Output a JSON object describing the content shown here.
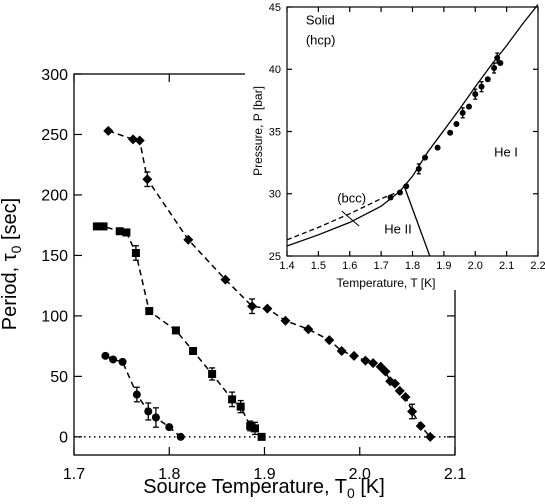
{
  "chart_data": [
    {
      "type": "scatter",
      "xlabel_main": "Source Temperature, T",
      "xlabel_sub": "0",
      "xlabel_unit": " [K]",
      "ylabel_main": "Period, τ",
      "ylabel_sub": "0",
      "ylabel_unit": " [sec]",
      "xlim": [
        1.7,
        2.1
      ],
      "ylim": [
        -15,
        300
      ],
      "xticks": [
        1.7,
        1.8,
        1.9,
        2.0,
        2.1
      ],
      "xtick_labels": [
        "1.7",
        "1.8",
        "1.9",
        "2.0",
        "2.1"
      ],
      "yticks": [
        0,
        50,
        100,
        150,
        200,
        250,
        300
      ],
      "ytick_labels": [
        "0",
        "50",
        "100",
        "150",
        "200",
        "250",
        "300"
      ],
      "reference_line": {
        "y": 0,
        "style": "dotted"
      },
      "series": [
        {
          "marker": "diamond",
          "x": [
            1.736,
            1.762,
            1.769,
            1.777,
            1.82,
            1.859,
            1.887,
            1.903,
            1.922,
            1.946,
            1.968,
            1.981,
            1.994,
            2.006,
            2.014,
            2.022,
            2.027,
            2.032,
            2.037,
            2.042,
            2.048,
            2.055,
            2.064,
            2.074
          ],
          "y": [
            253,
            246,
            245,
            213,
            163,
            130,
            108,
            106,
            96,
            89,
            80,
            71,
            67,
            63,
            61,
            58,
            54,
            46,
            44,
            38,
            33,
            21,
            9,
            0
          ],
          "yerr": [
            0,
            0,
            0,
            6,
            0,
            0,
            6,
            0,
            0,
            0,
            0,
            0,
            0,
            0,
            0,
            0,
            0,
            0,
            0,
            0,
            0,
            6,
            0,
            0
          ]
        },
        {
          "marker": "square",
          "x": [
            1.724,
            1.731,
            1.748,
            1.755,
            1.765,
            1.779,
            1.807,
            1.825,
            1.845,
            1.866,
            1.875,
            1.885,
            1.89,
            1.897
          ],
          "y": [
            174,
            174,
            170,
            169,
            152,
            104,
            88,
            71,
            52,
            31,
            25,
            9,
            7,
            0
          ],
          "yerr": [
            0,
            0,
            0,
            0,
            6,
            0,
            0,
            0,
            5,
            6,
            5,
            4,
            5,
            0
          ]
        },
        {
          "marker": "circle",
          "x": [
            1.733,
            1.741,
            1.751,
            1.766,
            1.778,
            1.786,
            1.8,
            1.812
          ],
          "y": [
            67,
            64,
            62,
            35,
            21,
            16,
            8,
            0
          ],
          "yerr": [
            0,
            0,
            0,
            6,
            7,
            8,
            0,
            0
          ]
        }
      ]
    },
    {
      "type": "line",
      "xlabel": "Temperature, T [K]",
      "ylabel": "Pressure, P [bar]",
      "xlim": [
        1.4,
        2.2
      ],
      "ylim": [
        25,
        45
      ],
      "xticks": [
        1.4,
        1.5,
        1.6,
        1.7,
        1.8,
        1.9,
        2.0,
        2.1,
        2.2
      ],
      "xtick_labels": [
        "1.4",
        "1.5",
        "1.6",
        "1.7",
        "1.8",
        "1.9",
        "2.0",
        "2.1",
        "2.2"
      ],
      "yticks": [
        25,
        30,
        35,
        40,
        45
      ],
      "ytick_labels": [
        "25",
        "30",
        "35",
        "40",
        "45"
      ],
      "curves": [
        {
          "style": "solid",
          "x": [
            1.4,
            1.5,
            1.6,
            1.7,
            1.76,
            1.8,
            1.85,
            1.9,
            1.95,
            2.0,
            2.05,
            2.1,
            2.15,
            2.2
          ],
          "y": [
            25.8,
            26.7,
            27.7,
            29.0,
            30.2,
            31.4,
            33.4,
            35.1,
            36.8,
            38.6,
            40.3,
            41.9,
            43.6,
            45.2
          ]
        },
        {
          "style": "dashed",
          "x": [
            1.4,
            1.5,
            1.6,
            1.7,
            1.76
          ],
          "y": [
            26.3,
            27.3,
            28.4,
            29.6,
            30.2
          ]
        },
        {
          "style": "solid",
          "x": [
            1.775,
            1.855
          ],
          "y": [
            30.5,
            25.0
          ]
        }
      ],
      "points": {
        "marker": "circle",
        "x": [
          1.73,
          1.76,
          1.78,
          1.82,
          1.84,
          1.88,
          1.92,
          1.94,
          1.96,
          1.98,
          2.0,
          2.02,
          2.04,
          2.06,
          2.07,
          2.08
        ],
        "y": [
          29.7,
          30.1,
          30.6,
          32.0,
          32.9,
          33.7,
          34.9,
          35.6,
          36.5,
          37.0,
          38.0,
          38.6,
          39.2,
          40.1,
          40.9,
          40.5
        ],
        "yerr": [
          0,
          0,
          0,
          0.4,
          0,
          0,
          0,
          0,
          0.4,
          0,
          0.4,
          0.4,
          0,
          0.4,
          0.4,
          0
        ]
      },
      "annotations": [
        {
          "text": "Solid",
          "x": 1.46,
          "y": 43.6
        },
        {
          "text": "(hcp)",
          "x": 1.46,
          "y": 42.0
        },
        {
          "text": "He I",
          "x": 2.06,
          "y": 33.0
        },
        {
          "text": "He II",
          "x": 1.71,
          "y": 26.8
        },
        {
          "text": "(bcc)",
          "x": 1.56,
          "y": 29.3
        }
      ]
    }
  ]
}
